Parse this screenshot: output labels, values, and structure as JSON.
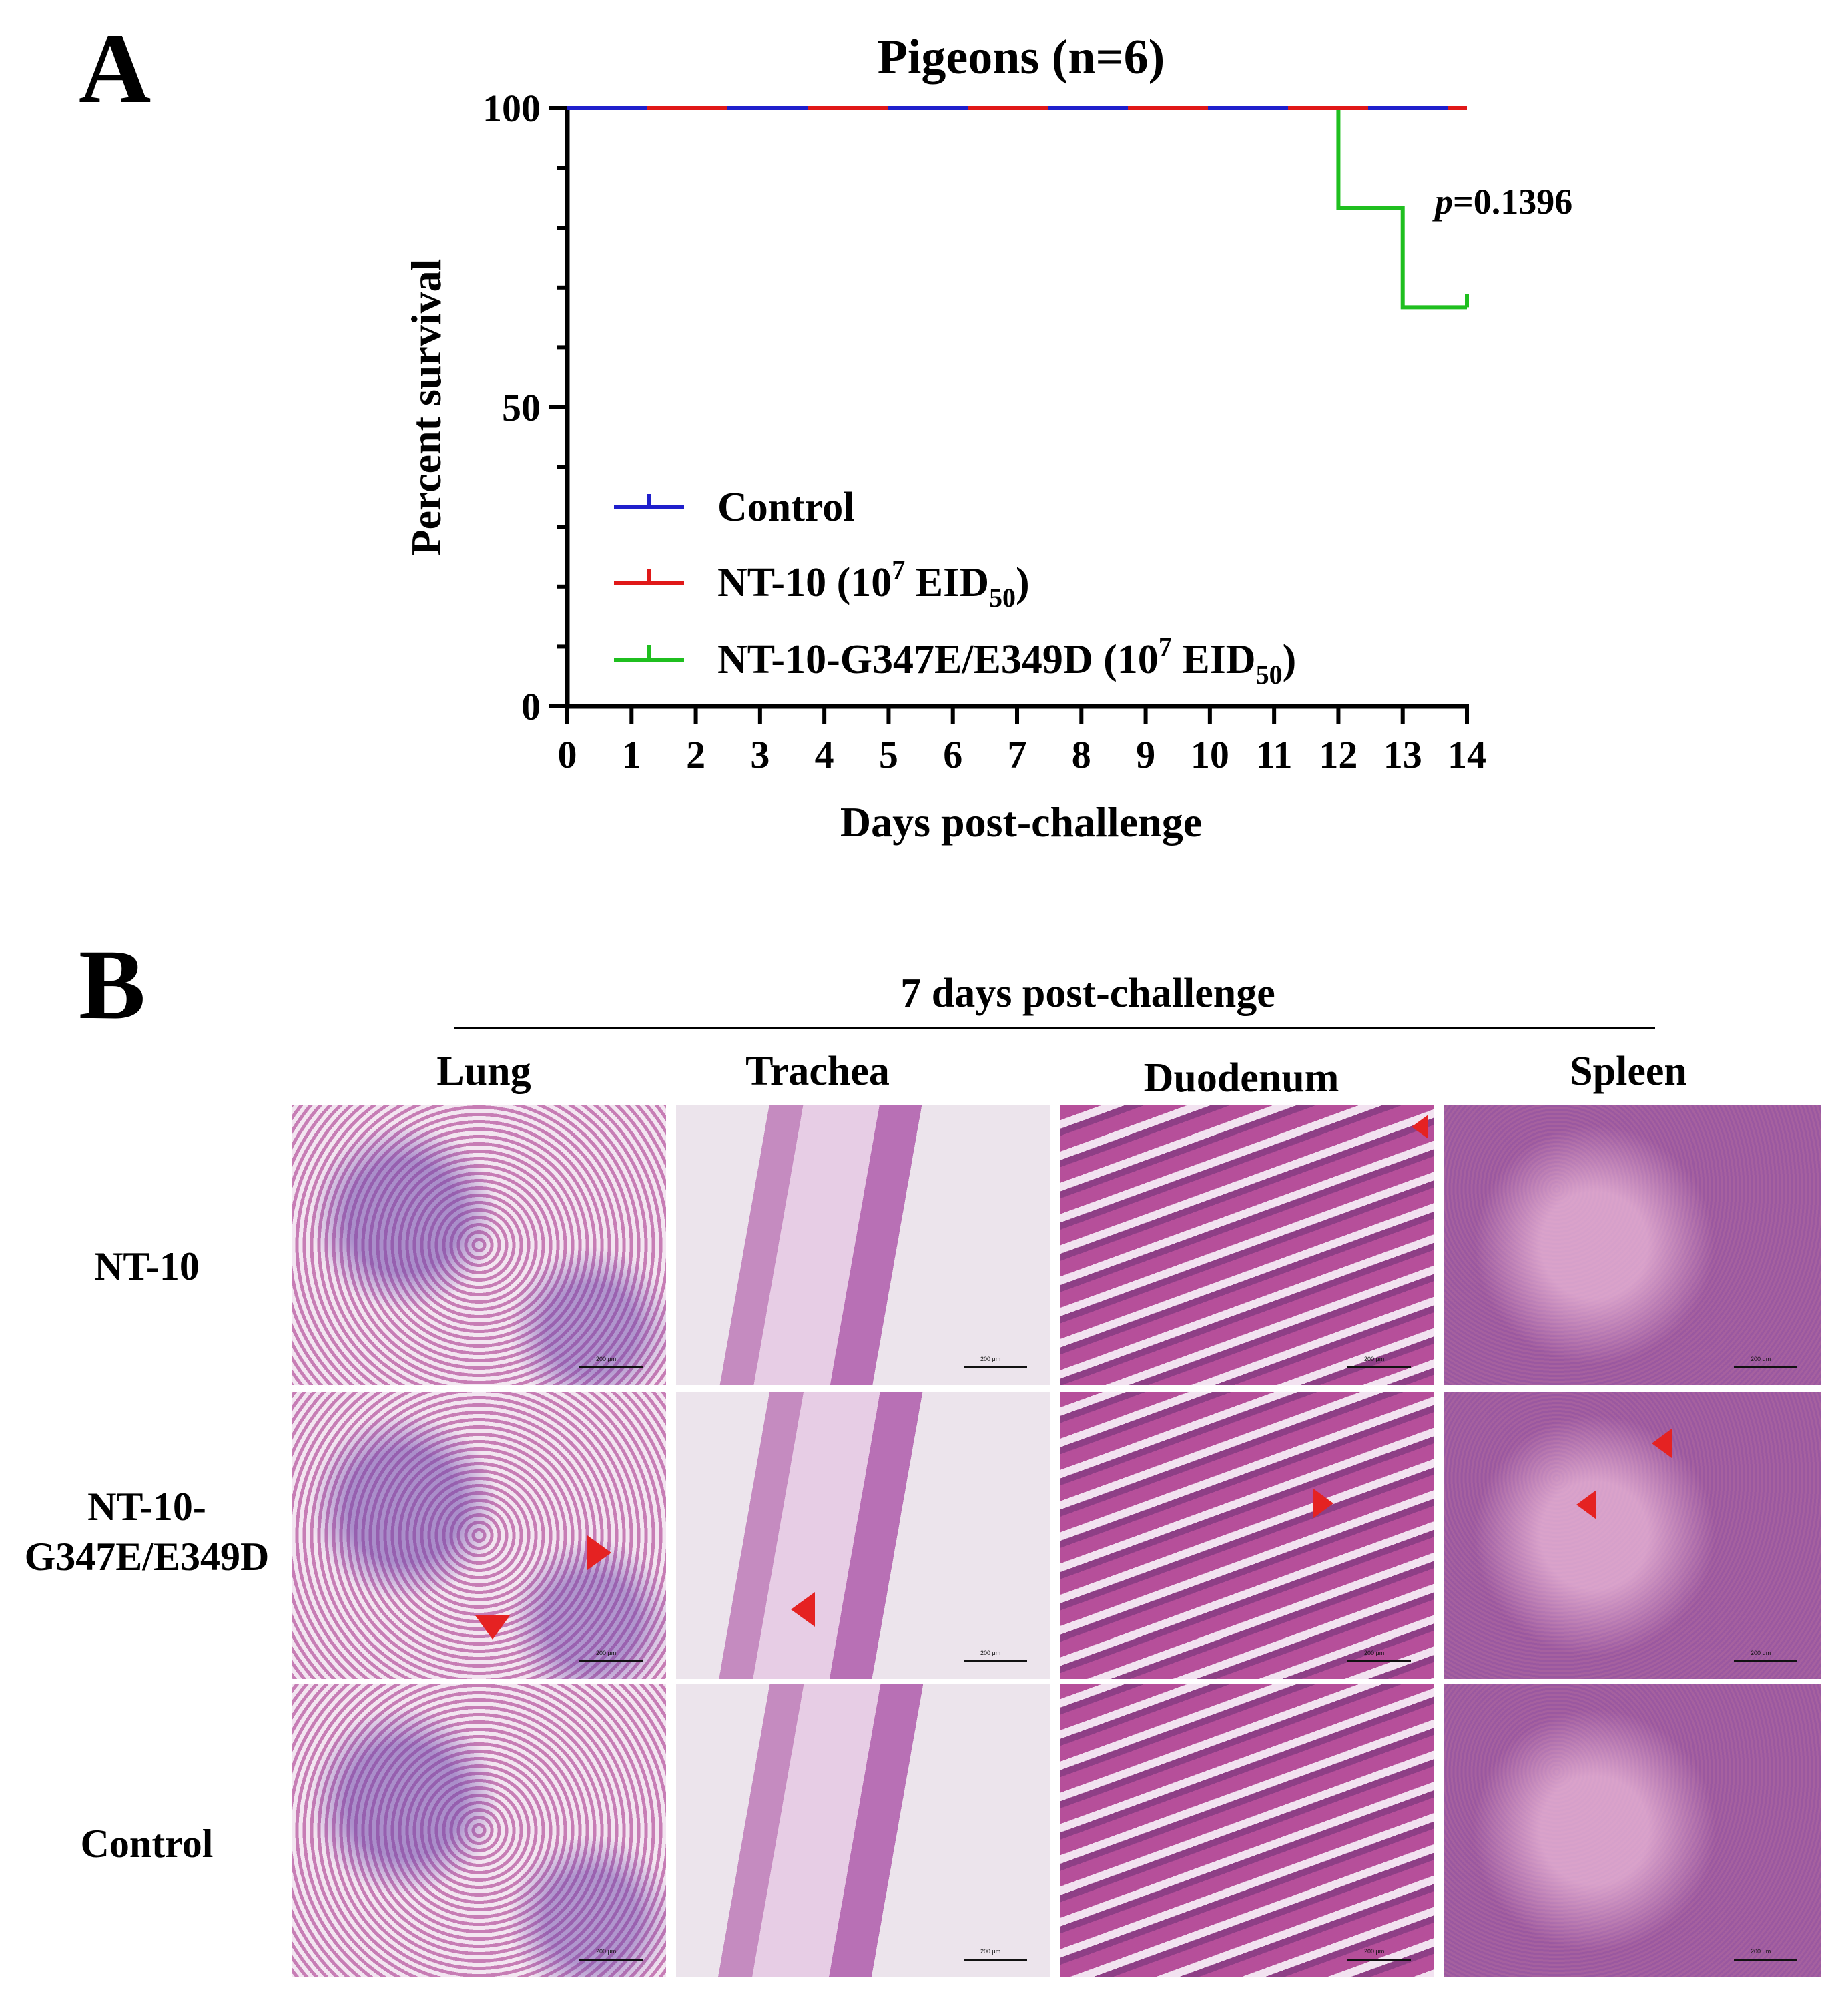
{
  "panel_a": {
    "letter": "A",
    "chart_data": {
      "type": "line",
      "title": "Pigeons (n=6)",
      "xlabel": "Days post-challenge",
      "ylabel": "Percent survival",
      "xlim": [
        0,
        14
      ],
      "ylim": [
        0,
        100
      ],
      "x_ticks": [
        "0",
        "1",
        "2",
        "3",
        "4",
        "5",
        "6",
        "7",
        "8",
        "9",
        "10",
        "11",
        "12",
        "13",
        "14"
      ],
      "y_ticks": [
        "0",
        "50",
        "100"
      ],
      "legend_position": "lower-left",
      "annotation": {
        "italic": "p",
        "rest": "=0.1396"
      },
      "series": [
        {
          "name": "Control",
          "color": "#1f1fcc",
          "x": [
            0,
            14
          ],
          "y": [
            100,
            100
          ]
        },
        {
          "name_parts": {
            "pre": "NT-10 (10",
            "sup": "7",
            "mid": " EID",
            "sub": "50",
            "post": ")"
          },
          "color": "#e01818",
          "x": [
            0,
            14
          ],
          "y": [
            100,
            100
          ]
        },
        {
          "name_parts": {
            "pre": "NT-10-G347E/E349D (10",
            "sup": "7",
            "mid": " EID",
            "sub": "50",
            "post": ")"
          },
          "color": "#1fbf1f",
          "x": [
            0,
            12,
            12,
            13,
            13,
            14
          ],
          "y": [
            100,
            100,
            83.3,
            83.3,
            66.7,
            66.7
          ]
        }
      ]
    }
  },
  "panel_b": {
    "letter": "B",
    "title": "7 days post-challenge",
    "columns": [
      "Lung",
      "Trachea",
      "Duodenum",
      "Spleen"
    ],
    "rows": [
      {
        "label_lines": [
          "NT-10"
        ]
      },
      {
        "label_lines": [
          "NT-10-",
          "G347E/E349D"
        ]
      },
      {
        "label_lines": [
          "Control"
        ]
      }
    ],
    "scale_label": "200 μm",
    "colors": {
      "lung": "#c77db5",
      "trachea": "#ece4ec",
      "duodenum": "#b64f9a",
      "spleen": "#a6619f",
      "arrow": "#e52222"
    }
  }
}
